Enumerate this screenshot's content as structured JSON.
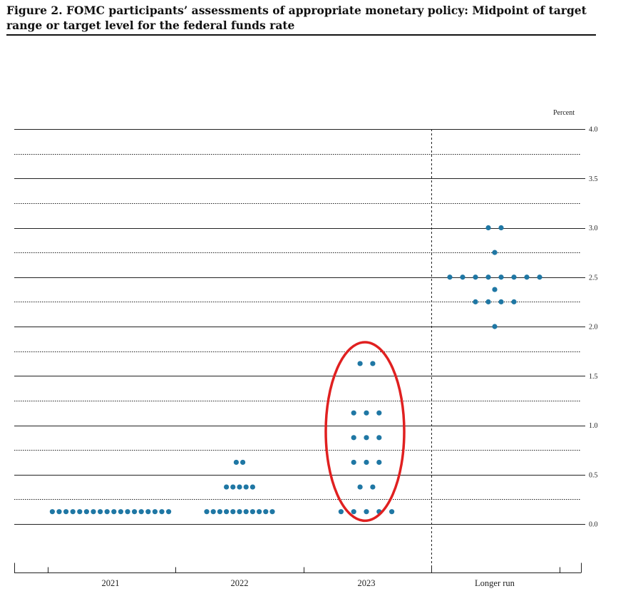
{
  "figure": {
    "title": "Figure 2.  FOMC participants’ assessments of appropriate monetary policy:  Midpoint of target range or target level for the federal funds rate"
  },
  "chart_data": {
    "type": "scatter",
    "subtype": "dot-plot",
    "ylabel": "Percent",
    "ylim": [
      -0.125,
      4.0
    ],
    "yticks": [
      {
        "value": 0.0,
        "label": "0.0"
      },
      {
        "value": 0.5,
        "label": "0.5"
      },
      {
        "value": 1.0,
        "label": "1.0"
      },
      {
        "value": 1.5,
        "label": "1.5"
      },
      {
        "value": 2.0,
        "label": "2.0"
      },
      {
        "value": 2.5,
        "label": "2.5"
      },
      {
        "value": 3.0,
        "label": "3.0"
      },
      {
        "value": 3.5,
        "label": "3.5"
      },
      {
        "value": 4.0,
        "label": "4.0"
      }
    ],
    "categories": [
      "2021",
      "2022",
      "2023",
      "Longer run"
    ],
    "dot_color": "#1f77a4",
    "annotation": {
      "shape": "ellipse",
      "color": "#e02020",
      "category": "2023",
      "y_range": [
        0.25,
        1.625
      ]
    },
    "points": [
      {
        "category": "2021",
        "y": 0.125,
        "count": 18
      },
      {
        "category": "2022",
        "y": 0.125,
        "count": 11
      },
      {
        "category": "2022",
        "y": 0.375,
        "count": 5
      },
      {
        "category": "2022",
        "y": 0.625,
        "count": 2
      },
      {
        "category": "2023",
        "y": 0.125,
        "count": 5
      },
      {
        "category": "2023",
        "y": 0.375,
        "count": 2
      },
      {
        "category": "2023",
        "y": 0.625,
        "count": 3
      },
      {
        "category": "2023",
        "y": 0.875,
        "count": 3
      },
      {
        "category": "2023",
        "y": 1.125,
        "count": 3
      },
      {
        "category": "2023",
        "y": 1.625,
        "count": 2
      },
      {
        "category": "Longer run",
        "y": 2.0,
        "count": 1
      },
      {
        "category": "Longer run",
        "y": 2.25,
        "count": 4
      },
      {
        "category": "Longer run",
        "y": 2.375,
        "count": 1
      },
      {
        "category": "Longer run",
        "y": 2.5,
        "count": 8
      },
      {
        "category": "Longer run",
        "y": 2.75,
        "count": 1
      },
      {
        "category": "Longer run",
        "y": 3.0,
        "count": 2
      }
    ]
  }
}
